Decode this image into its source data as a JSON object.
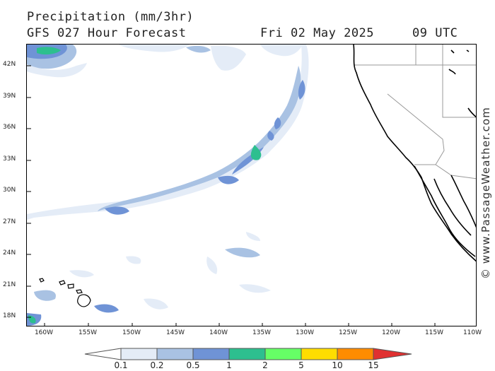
{
  "header": {
    "title": "Precipitation (mm/3hr)",
    "subtitle": "GFS 027 Hour Forecast",
    "date": "Fri 02 May 2025",
    "time": "09 UTC"
  },
  "map": {
    "lat_labels": [
      "42N",
      "39N",
      "36N",
      "33N",
      "30N",
      "27N",
      "24N",
      "21N",
      "18N"
    ],
    "lon_labels": [
      "160W",
      "155W",
      "150W",
      "145W",
      "140W",
      "135W",
      "130W",
      "125W",
      "120W",
      "115W",
      "110W"
    ]
  },
  "legend": {
    "labels": [
      "0.1",
      "0.2",
      "0.5",
      "1",
      "2",
      "5",
      "10",
      "15"
    ],
    "colors": [
      "#ffffff",
      "#e4ecf7",
      "#a9c2e3",
      "#6f93d6",
      "#2dbf8f",
      "#66ff66",
      "#ffdd00",
      "#ff8c00",
      "#e03030"
    ]
  },
  "credit": "© www.PassageWeather.com"
}
